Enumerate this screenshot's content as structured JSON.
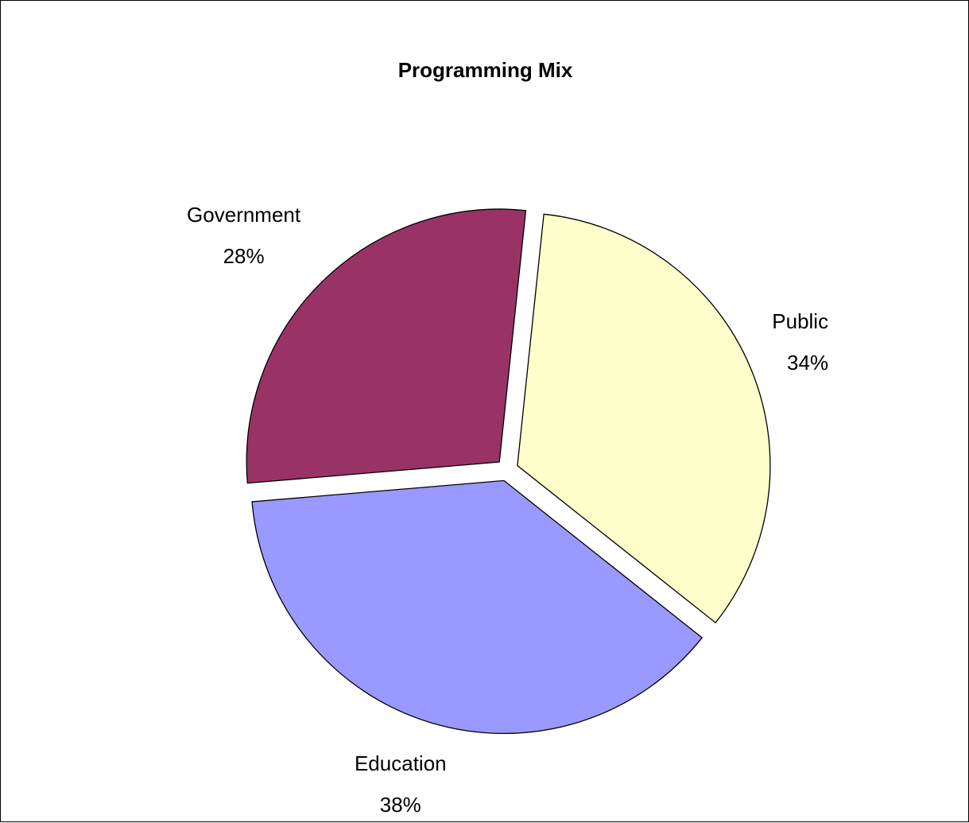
{
  "chart_data": {
    "type": "pie",
    "title": "Programming Mix",
    "slices": [
      {
        "label": "Public",
        "value": 34,
        "value_label": "34%",
        "color": "#FFFFCC"
      },
      {
        "label": "Education",
        "value": 38,
        "value_label": "38%",
        "color": "#9999FF"
      },
      {
        "label": "Government",
        "value": 28,
        "value_label": "28%",
        "color": "#993366"
      }
    ],
    "legend": "none",
    "labels_outside": true
  }
}
